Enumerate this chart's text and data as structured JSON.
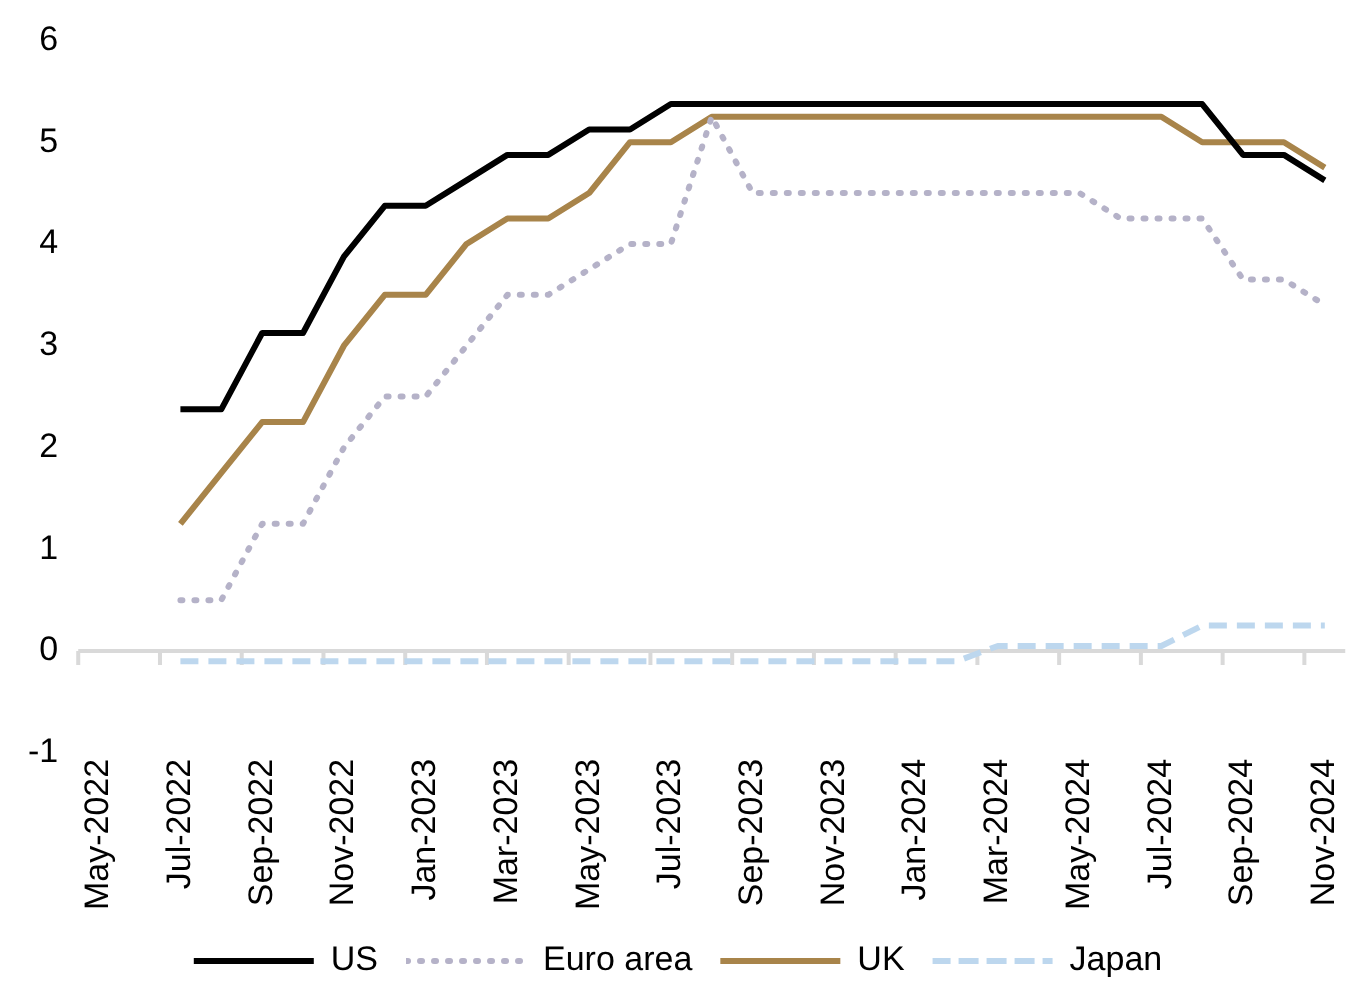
{
  "chart_data": {
    "type": "line",
    "categories": [
      "May-2022",
      null,
      "Jul-2022",
      null,
      "Sep-2022",
      null,
      "Nov-2022",
      null,
      "Jan-2023",
      null,
      "Mar-2023",
      null,
      "May-2023",
      null,
      "Jul-2023",
      null,
      "Sep-2023",
      null,
      "Nov-2023",
      null,
      "Jan-2024",
      null,
      "Mar-2024",
      null,
      "May-2024",
      null,
      "Jul-2024",
      null,
      "Sep-2024",
      null,
      "Nov-2024"
    ],
    "series": [
      {
        "name": "US",
        "color": "#000000",
        "line_style": "solid",
        "values": [
          null,
          null,
          2.375,
          2.375,
          3.125,
          3.125,
          3.875,
          4.375,
          4.375,
          4.625,
          4.875,
          4.875,
          5.125,
          5.125,
          5.375,
          5.375,
          5.375,
          5.375,
          5.375,
          5.375,
          5.375,
          5.375,
          5.375,
          5.375,
          5.375,
          5.375,
          5.375,
          5.375,
          4.875,
          4.875,
          4.625
        ]
      },
      {
        "name": "Euro area",
        "color": "#b5b2c8",
        "line_style": "dotted",
        "values": [
          null,
          null,
          0.5,
          0.5,
          1.25,
          1.25,
          2.0,
          2.5,
          2.5,
          3.0,
          3.5,
          3.5,
          3.75,
          4.0,
          4.0,
          5.25,
          4.5,
          4.5,
          4.5,
          4.5,
          4.5,
          4.5,
          4.5,
          4.5,
          4.5,
          4.25,
          4.25,
          4.25,
          3.65,
          3.65,
          3.4
        ]
      },
      {
        "name": "UK",
        "color": "#a8844a",
        "line_style": "solid",
        "values": [
          null,
          null,
          1.25,
          1.75,
          2.25,
          2.25,
          3.0,
          3.5,
          3.5,
          4.0,
          4.25,
          4.25,
          4.5,
          5.0,
          5.0,
          5.25,
          5.25,
          5.25,
          5.25,
          5.25,
          5.25,
          5.25,
          5.25,
          5.25,
          5.25,
          5.25,
          5.25,
          5.0,
          5.0,
          5.0,
          4.75
        ]
      },
      {
        "name": "Japan",
        "color": "#bdd7ee",
        "line_style": "dashed",
        "values": [
          null,
          null,
          -0.1,
          -0.1,
          -0.1,
          -0.1,
          -0.1,
          -0.1,
          -0.1,
          -0.1,
          -0.1,
          -0.1,
          -0.1,
          -0.1,
          -0.1,
          -0.1,
          -0.1,
          -0.1,
          -0.1,
          -0.1,
          -0.1,
          -0.1,
          0.05,
          0.05,
          0.05,
          0.05,
          0.05,
          0.25,
          0.25,
          0.25,
          0.25
        ]
      }
    ],
    "ylim": [
      -1,
      6
    ],
    "yticks": [
      -1,
      0,
      1,
      2,
      3,
      4,
      5,
      6
    ],
    "grid": false,
    "ref_lines": [
      {
        "axis": "y",
        "value": 0,
        "color": "#d9d9d9"
      }
    ],
    "legend": "bottom",
    "marker": "none"
  }
}
